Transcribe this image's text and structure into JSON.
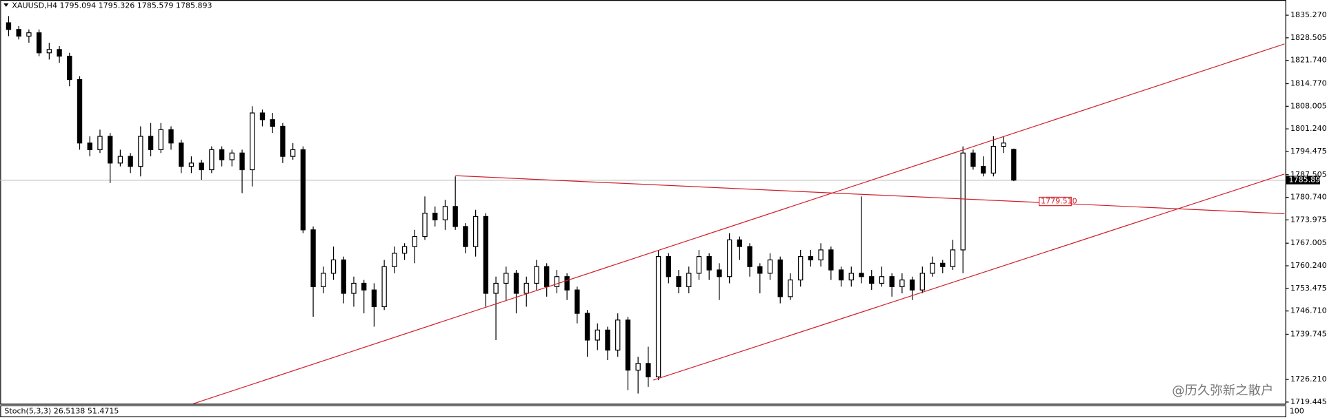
{
  "chart_data": {
    "type": "candlestick",
    "title": "XAUUSD,H4  1795.094 1795.326 1785.579 1785.893",
    "open": [
      1833,
      1831,
      1829,
      1830,
      1824,
      1825,
      1823,
      1816,
      1797,
      1795,
      1799,
      1791,
      1793,
      1790,
      1799,
      1795,
      1801,
      1797,
      1790,
      1791,
      1789,
      1795,
      1792,
      1794,
      1789,
      1806,
      1804,
      1802,
      1793,
      1795,
      1771,
      1754,
      1758,
      1762,
      1752,
      1755,
      1753,
      1748,
      1760,
      1764,
      1766,
      1769,
      1776,
      1774,
      1778,
      1772,
      1766,
      1775,
      1752,
      1755,
      1758,
      1752,
      1755,
      1760,
      1754,
      1757,
      1753,
      1746,
      1738,
      1741,
      1735,
      1744,
      1729,
      1731,
      1727,
      1763,
      1757,
      1754,
      1758,
      1763,
      1759,
      1757,
      1768,
      1766,
      1760,
      1758,
      1762,
      1751,
      1756,
      1763,
      1762,
      1765,
      1759,
      1756,
      1758,
      1757,
      1755,
      1757,
      1754,
      1756,
      1753,
      1758,
      1761,
      1760,
      1765,
      1794,
      1790,
      1788,
      1796,
      1795.094
    ],
    "high": [
      1835,
      1832,
      1831,
      1831,
      1827,
      1826,
      1824,
      1817,
      1799,
      1801,
      1800,
      1795,
      1794,
      1802,
      1803,
      1803,
      1802,
      1798,
      1793,
      1792,
      1796,
      1796,
      1795,
      1795,
      1808,
      1807,
      1806,
      1803,
      1797,
      1796,
      1772,
      1760,
      1766,
      1763,
      1757,
      1756,
      1755,
      1762,
      1766,
      1767,
      1771,
      1781,
      1778,
      1780,
      1787,
      1773,
      1777,
      1776,
      1757,
      1760,
      1759,
      1757,
      1762,
      1761,
      1759,
      1758,
      1754,
      1747,
      1743,
      1742,
      1746,
      1745,
      1733,
      1736,
      1765,
      1764,
      1759,
      1760,
      1765,
      1764,
      1761,
      1770,
      1769,
      1767,
      1761,
      1764,
      1763,
      1758,
      1765,
      1765,
      1767,
      1766,
      1760,
      1760,
      1781,
      1759,
      1760,
      1758,
      1758,
      1757,
      1760,
      1763,
      1762,
      1768,
      1796,
      1795,
      1793,
      1799,
      1799,
      1795.326
    ],
    "low": [
      1829,
      1828,
      1827,
      1823,
      1822,
      1821,
      1814,
      1795,
      1793,
      1794,
      1785,
      1790,
      1788,
      1787,
      1793,
      1794,
      1795,
      1788,
      1788,
      1786,
      1788,
      1790,
      1790,
      1782,
      1784,
      1802,
      1800,
      1791,
      1792,
      1770,
      1745,
      1752,
      1756,
      1749,
      1748,
      1746,
      1742,
      1747,
      1758,
      1762,
      1761,
      1768,
      1772,
      1771,
      1771,
      1764,
      1763,
      1748,
      1738,
      1750,
      1746,
      1748,
      1753,
      1751,
      1752,
      1750,
      1743,
      1733,
      1735,
      1732,
      1733,
      1723,
      1722,
      1724,
      1726,
      1755,
      1752,
      1752,
      1756,
      1756,
      1750,
      1755,
      1762,
      1757,
      1752,
      1756,
      1749,
      1750,
      1754,
      1760,
      1760,
      1756,
      1754,
      1754,
      1755,
      1753,
      1754,
      1751,
      1752,
      1750,
      1752,
      1757,
      1758,
      1759,
      1758,
      1789,
      1787,
      1787,
      1794,
      1785.579
    ],
    "close": [
      1831,
      1829,
      1830,
      1824,
      1825,
      1823,
      1816,
      1797,
      1795,
      1799,
      1791,
      1793,
      1790,
      1799,
      1795,
      1801,
      1797,
      1790,
      1791,
      1789,
      1795,
      1792,
      1794,
      1789,
      1806,
      1804,
      1802,
      1793,
      1795,
      1771,
      1754,
      1758,
      1762,
      1752,
      1755,
      1753,
      1748,
      1760,
      1764,
      1766,
      1769,
      1776,
      1774,
      1778,
      1772,
      1766,
      1775,
      1752,
      1755,
      1758,
      1752,
      1755,
      1760,
      1754,
      1757,
      1753,
      1746,
      1738,
      1741,
      1735,
      1744,
      1729,
      1731,
      1727,
      1763,
      1757,
      1754,
      1758,
      1763,
      1759,
      1757,
      1768,
      1766,
      1760,
      1758,
      1762,
      1751,
      1756,
      1763,
      1762,
      1765,
      1759,
      1756,
      1758,
      1757,
      1755,
      1757,
      1754,
      1756,
      1753,
      1758,
      1761,
      1760,
      1765,
      1794,
      1790,
      1788,
      1796,
      1797,
      1785.893
    ],
    "xlim": [
      -0.83,
      125.67
    ],
    "ylim": [
      1718.94,
      1839.82
    ],
    "yticks": [
      {
        "value": 1835.27,
        "label": "1835.270"
      },
      {
        "value": 1828.505,
        "label": "1828.505"
      },
      {
        "value": 1821.74,
        "label": "1821.740"
      },
      {
        "value": 1814.77,
        "label": "1814.770"
      },
      {
        "value": 1808.005,
        "label": "1808.005"
      },
      {
        "value": 1801.24,
        "label": "1801.240"
      },
      {
        "value": 1794.475,
        "label": "1794.475"
      },
      {
        "value": 1787.505,
        "label": "1787.505"
      },
      {
        "value": 1780.74,
        "label": "1780.740"
      },
      {
        "value": 1773.975,
        "label": "1773.975"
      },
      {
        "value": 1767.005,
        "label": "1767.005"
      },
      {
        "value": 1760.24,
        "label": "1760.240"
      },
      {
        "value": 1753.475,
        "label": "1753.475"
      },
      {
        "value": 1746.71,
        "label": "1746.710"
      },
      {
        "value": 1739.745,
        "label": "1739.745"
      },
      {
        "value": 1726.21,
        "label": "1726.210"
      },
      {
        "value": 1719.445,
        "label": "1719.445"
      }
    ],
    "current_price": {
      "value": 1785.893,
      "label": "1785.893"
    },
    "trendlines": [
      {
        "x": [
          18.17,
          125.67
        ],
        "y": [
          1718.93,
          1826.67
        ]
      },
      {
        "x": [
          63.5,
          125.67
        ],
        "y": [
          1726.01,
          1787.72
        ]
      },
      {
        "x": [
          44,
          125.67
        ],
        "y": [
          1787.22,
          1775.84
        ]
      }
    ],
    "price_label": {
      "value": 1779.51,
      "label": "1779.510",
      "x": 101.5
    },
    "up_color": "#ffffff",
    "down_color": "#000000",
    "line_color": "#d0202a",
    "indicator": {
      "label": "Stoch(5,3,3) 26.5138 51.4715",
      "axis_label": "100"
    },
    "watermark": "@历久弥新之散户"
  }
}
